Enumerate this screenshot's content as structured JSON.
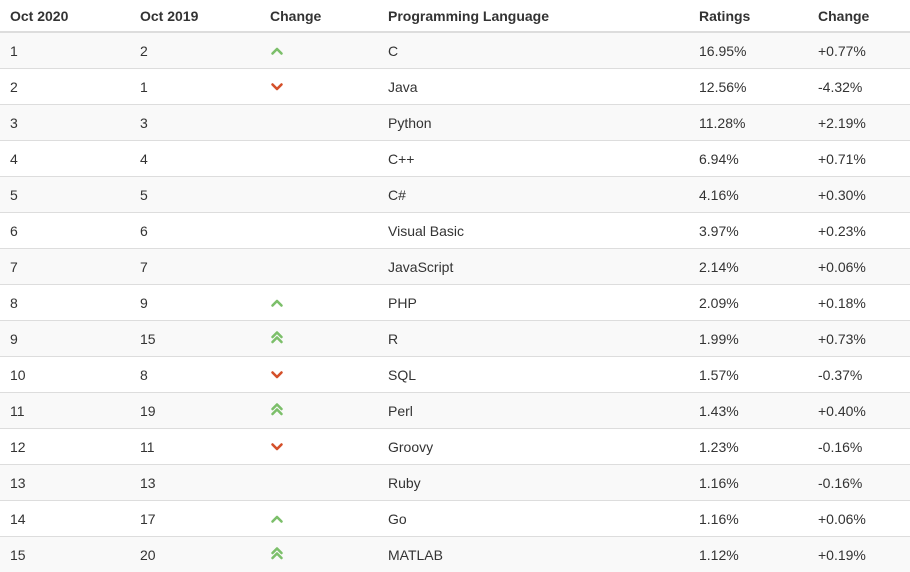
{
  "table": {
    "headers": [
      "Oct 2020",
      "Oct 2019",
      "Change",
      "Programming Language",
      "Ratings",
      "Change"
    ],
    "rows": [
      {
        "now": "1",
        "prev": "2",
        "trend": "up",
        "lang": "C",
        "rating": "16.95%",
        "change": "+0.77%"
      },
      {
        "now": "2",
        "prev": "1",
        "trend": "down",
        "lang": "Java",
        "rating": "12.56%",
        "change": "-4.32%"
      },
      {
        "now": "3",
        "prev": "3",
        "trend": "none",
        "lang": "Python",
        "rating": "11.28%",
        "change": "+2.19%"
      },
      {
        "now": "4",
        "prev": "4",
        "trend": "none",
        "lang": "C++",
        "rating": "6.94%",
        "change": "+0.71%"
      },
      {
        "now": "5",
        "prev": "5",
        "trend": "none",
        "lang": "C#",
        "rating": "4.16%",
        "change": "+0.30%"
      },
      {
        "now": "6",
        "prev": "6",
        "trend": "none",
        "lang": "Visual Basic",
        "rating": "3.97%",
        "change": "+0.23%"
      },
      {
        "now": "7",
        "prev": "7",
        "trend": "none",
        "lang": "JavaScript",
        "rating": "2.14%",
        "change": "+0.06%"
      },
      {
        "now": "8",
        "prev": "9",
        "trend": "up",
        "lang": "PHP",
        "rating": "2.09%",
        "change": "+0.18%"
      },
      {
        "now": "9",
        "prev": "15",
        "trend": "double-up",
        "lang": "R",
        "rating": "1.99%",
        "change": "+0.73%"
      },
      {
        "now": "10",
        "prev": "8",
        "trend": "down",
        "lang": "SQL",
        "rating": "1.57%",
        "change": "-0.37%"
      },
      {
        "now": "11",
        "prev": "19",
        "trend": "double-up",
        "lang": "Perl",
        "rating": "1.43%",
        "change": "+0.40%"
      },
      {
        "now": "12",
        "prev": "11",
        "trend": "down",
        "lang": "Groovy",
        "rating": "1.23%",
        "change": "-0.16%"
      },
      {
        "now": "13",
        "prev": "13",
        "trend": "none",
        "lang": "Ruby",
        "rating": "1.16%",
        "change": "-0.16%"
      },
      {
        "now": "14",
        "prev": "17",
        "trend": "up",
        "lang": "Go",
        "rating": "1.16%",
        "change": "+0.06%"
      },
      {
        "now": "15",
        "prev": "20",
        "trend": "double-up",
        "lang": "MATLAB",
        "rating": "1.12%",
        "change": "+0.19%"
      }
    ]
  },
  "colors": {
    "up": "#7cbf6a",
    "down": "#d4502a",
    "row_stripe": "#f9f9f9",
    "border": "#dddddd"
  }
}
